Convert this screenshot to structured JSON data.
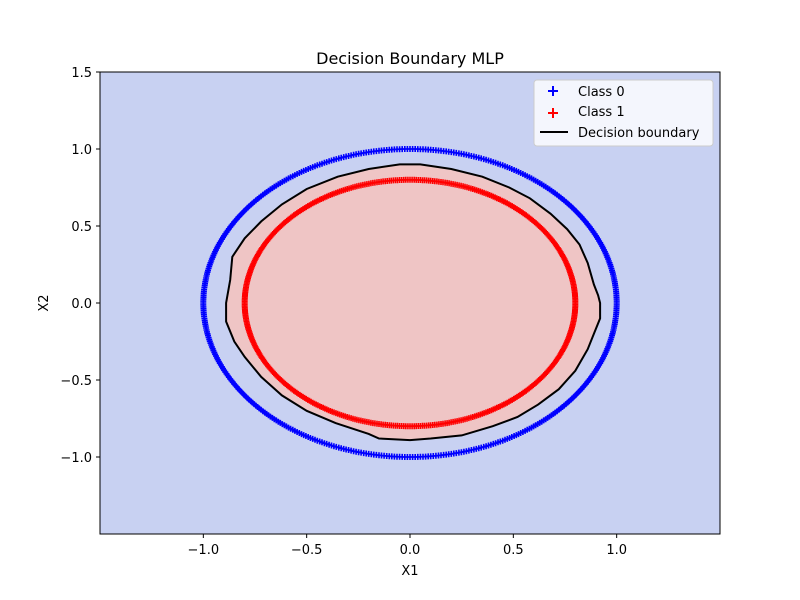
{
  "chart_data": {
    "type": "scatter",
    "title": "Decision Boundary MLP",
    "xlabel": "X1",
    "ylabel": "X2",
    "xlim": [
      -1.5,
      1.5
    ],
    "ylim": [
      -1.5,
      1.5
    ],
    "xticks": [
      -1.0,
      -0.5,
      0.0,
      0.5,
      1.0
    ],
    "xtick_labels": [
      "−1.0",
      "−0.5",
      "0.0",
      "0.5",
      "1.0"
    ],
    "yticks": [
      -1.0,
      -0.5,
      0.0,
      0.5,
      1.0,
      1.5
    ],
    "ytick_labels": [
      "−1.0",
      "−0.5",
      "0.0",
      "0.5",
      "1.0",
      "1.5"
    ],
    "grid": false,
    "legend_position": "upper right",
    "series": [
      {
        "name": "Class 0",
        "marker": "+",
        "color": "#0000ff",
        "shape": "circle",
        "radius": 1.0,
        "n_points": 500
      },
      {
        "name": "Class 1",
        "marker": "+",
        "color": "#ff0000",
        "shape": "circle",
        "radius": 0.8,
        "n_points": 500
      }
    ],
    "decision_boundary": {
      "name": "Decision boundary",
      "color": "#000000",
      "points": [
        [
          0.92,
          0.0
        ],
        [
          0.91,
          0.05
        ],
        [
          0.89,
          0.12
        ],
        [
          0.86,
          0.26
        ],
        [
          0.82,
          0.38
        ],
        [
          0.76,
          0.48
        ],
        [
          0.68,
          0.58
        ],
        [
          0.58,
          0.68
        ],
        [
          0.48,
          0.75
        ],
        [
          0.35,
          0.82
        ],
        [
          0.2,
          0.87
        ],
        [
          0.05,
          0.9
        ],
        [
          -0.05,
          0.9
        ],
        [
          -0.2,
          0.87
        ],
        [
          -0.35,
          0.82
        ],
        [
          -0.5,
          0.74
        ],
        [
          -0.62,
          0.64
        ],
        [
          -0.72,
          0.53
        ],
        [
          -0.8,
          0.42
        ],
        [
          -0.86,
          0.3
        ],
        [
          -0.87,
          0.15
        ],
        [
          -0.89,
          0.0
        ],
        [
          -0.89,
          -0.12
        ],
        [
          -0.85,
          -0.25
        ],
        [
          -0.8,
          -0.35
        ],
        [
          -0.72,
          -0.48
        ],
        [
          -0.62,
          -0.6
        ],
        [
          -0.5,
          -0.7
        ],
        [
          -0.36,
          -0.78
        ],
        [
          -0.2,
          -0.85
        ],
        [
          -0.15,
          -0.88
        ],
        [
          0.0,
          -0.89
        ],
        [
          0.1,
          -0.88
        ],
        [
          0.25,
          -0.86
        ],
        [
          0.4,
          -0.8
        ],
        [
          0.52,
          -0.74
        ],
        [
          0.62,
          -0.66
        ],
        [
          0.72,
          -0.56
        ],
        [
          0.8,
          -0.44
        ],
        [
          0.86,
          -0.3
        ],
        [
          0.89,
          -0.2
        ],
        [
          0.92,
          -0.1
        ]
      ]
    },
    "regions": {
      "outside_color": "#c8d1f2",
      "inside_color": "#efc5c5",
      "inside_label": "Class 1",
      "outside_label": "Class 0"
    }
  }
}
